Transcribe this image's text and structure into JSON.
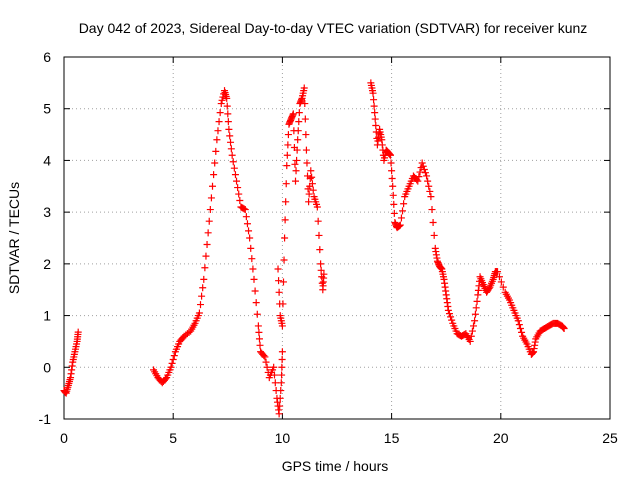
{
  "chart_data": {
    "type": "scatter",
    "title": "Day 042 of 2023, Sidereal Day-to-day VTEC variation (SDTVAR) for receiver kunz",
    "xlabel": "GPS time / hours",
    "ylabel": "SDTVAR / TECUs",
    "xlim": [
      0,
      25
    ],
    "ylim": [
      -1,
      6
    ],
    "xticks": [
      0,
      5,
      10,
      15,
      20,
      25
    ],
    "yticks": [
      -1,
      0,
      1,
      2,
      3,
      4,
      5,
      6
    ],
    "grid": true,
    "marker": "+",
    "series": [
      {
        "name": "SDTVAR",
        "color": "#ff0000",
        "x": [
          0.0,
          0.1,
          0.2,
          0.3,
          0.4,
          0.5,
          0.6,
          0.65,
          4.1,
          4.3,
          4.5,
          4.7,
          4.9,
          5.1,
          5.3,
          5.5,
          5.8,
          6.0,
          6.2,
          6.4,
          6.6,
          6.8,
          7.0,
          7.2,
          7.35,
          7.45,
          7.55,
          7.7,
          7.9,
          8.1,
          8.3,
          8.5,
          8.7,
          8.9,
          9.0,
          9.2,
          9.4,
          9.6,
          9.75,
          9.85,
          9.95,
          10.0,
          9.8,
          9.9,
          10.0,
          10.1,
          10.2,
          10.3,
          10.4,
          10.5,
          10.6,
          10.7,
          10.8,
          10.9,
          11.0,
          11.1,
          11.2,
          11.3,
          11.45,
          11.6,
          11.75,
          11.85,
          11.9,
          14.05,
          14.15,
          14.25,
          14.35,
          14.45,
          14.55,
          14.65,
          14.75,
          14.85,
          14.95,
          15.05,
          15.15,
          15.25,
          15.4,
          15.6,
          15.8,
          16.0,
          16.2,
          16.4,
          16.6,
          16.8,
          17.0,
          17.1,
          17.2,
          17.3,
          17.4,
          17.5,
          17.6,
          17.8,
          18.0,
          18.2,
          18.4,
          18.6,
          18.8,
          18.95,
          19.05,
          19.2,
          19.35,
          19.5,
          19.65,
          19.75,
          19.85,
          20.2,
          20.4,
          20.6,
          20.8,
          21.0,
          21.2,
          21.4,
          21.5,
          21.6,
          21.8,
          22.0,
          22.2,
          22.4,
          22.6,
          22.8,
          22.9
        ],
        "y": [
          -0.45,
          -0.5,
          -0.35,
          -0.2,
          0.1,
          0.3,
          0.5,
          0.68,
          -0.05,
          -0.2,
          -0.3,
          -0.2,
          0.0,
          0.3,
          0.5,
          0.6,
          0.7,
          0.85,
          1.05,
          1.7,
          2.6,
          3.5,
          4.4,
          5.1,
          5.35,
          5.2,
          4.6,
          4.1,
          3.6,
          3.1,
          3.05,
          2.5,
          1.7,
          0.8,
          0.3,
          0.2,
          -0.2,
          0.0,
          -0.6,
          -0.9,
          -0.3,
          0.3,
          1.9,
          1.0,
          0.8,
          2.5,
          3.9,
          4.7,
          4.8,
          4.9,
          3.6,
          4.4,
          5.1,
          5.2,
          5.4,
          4.2,
          3.2,
          3.8,
          3.3,
          3.1,
          2.0,
          1.5,
          1.8,
          5.5,
          5.3,
          4.8,
          4.3,
          4.6,
          4.4,
          4.0,
          4.2,
          4.15,
          4.1,
          3.5,
          2.8,
          2.7,
          2.75,
          3.3,
          3.5,
          3.7,
          3.6,
          3.95,
          3.7,
          3.3,
          2.3,
          2.05,
          1.95,
          1.9,
          1.7,
          1.4,
          1.1,
          0.85,
          0.65,
          0.6,
          0.65,
          0.5,
          0.9,
          1.4,
          1.75,
          1.6,
          1.45,
          1.55,
          1.7,
          1.85,
          1.85,
          1.45,
          1.3,
          1.1,
          0.9,
          0.6,
          0.45,
          0.25,
          0.3,
          0.55,
          0.7,
          0.75,
          0.8,
          0.85,
          0.85,
          0.8,
          0.75
        ]
      }
    ]
  }
}
